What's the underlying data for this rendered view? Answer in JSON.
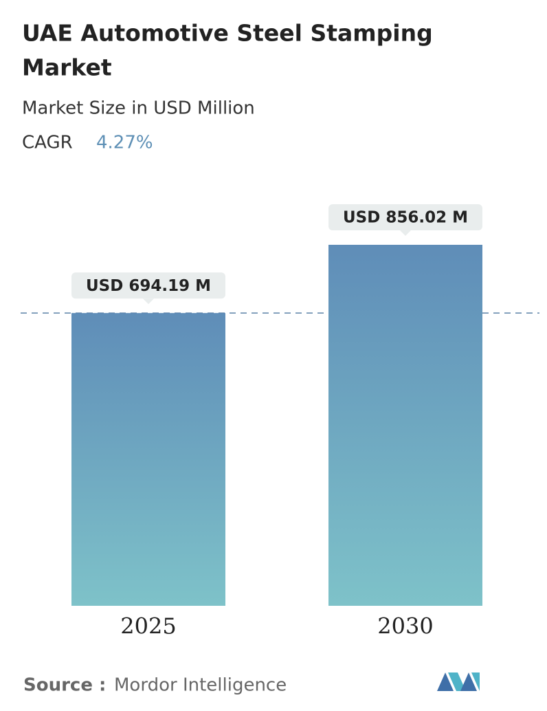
{
  "chart_data": {
    "type": "bar",
    "title": "UAE Automotive Steel Stamping Market",
    "subtitle": "Market Size in USD Million",
    "cagr_label": "CAGR",
    "cagr": "4.27%",
    "categories": [
      "2025",
      "2030"
    ],
    "values": [
      694.19,
      856.02
    ],
    "value_labels": [
      "USD 694.19 M",
      "USD 856.02 M"
    ],
    "source_label": "Source :",
    "source": "Mordor Intelligence"
  }
}
